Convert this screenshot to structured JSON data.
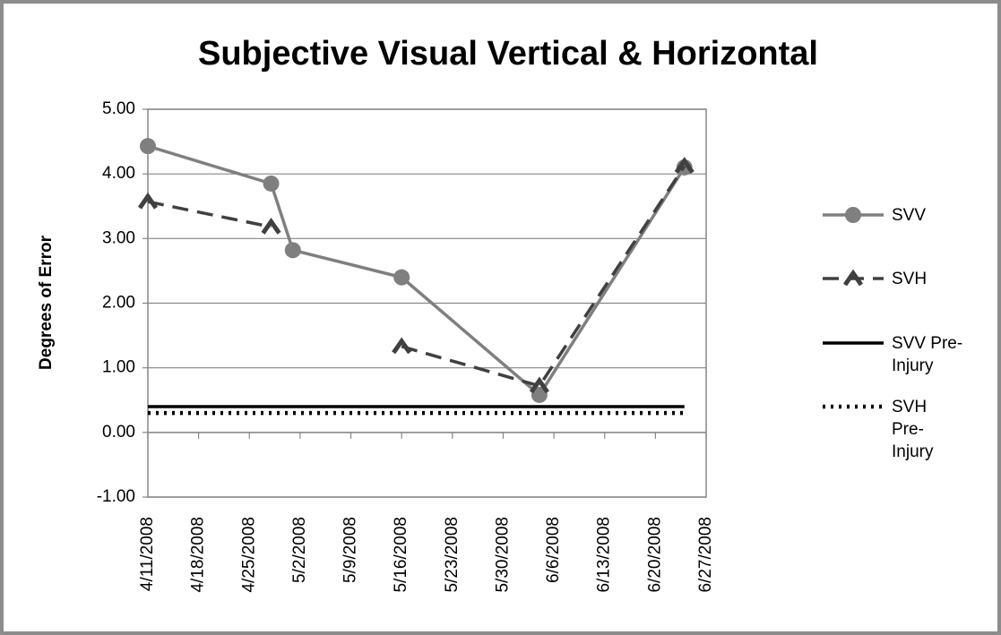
{
  "chart_data": {
    "type": "line",
    "title": "Subjective Visual Vertical & Horizontal",
    "y_label": "Degrees of Error",
    "ylim": [
      -1,
      5
    ],
    "yticks": [
      {
        "value": -1,
        "label": "-1.00"
      },
      {
        "value": 0,
        "label": "0.00"
      },
      {
        "value": 1,
        "label": "1.00"
      },
      {
        "value": 2,
        "label": "2.00"
      },
      {
        "value": 3,
        "label": "3.00"
      },
      {
        "value": 4,
        "label": "4.00"
      },
      {
        "value": 5,
        "label": "5.00"
      }
    ],
    "xlim": [
      "4/11/2008",
      "6/27/2008"
    ],
    "xticks": [
      "4/11/2008",
      "4/18/2008",
      "4/25/2008",
      "5/2/2008",
      "5/9/2008",
      "5/16/2008",
      "5/23/2008",
      "5/30/2008",
      "6/6/2008",
      "6/13/2008",
      "6/20/2008",
      "6/27/2008"
    ],
    "grid": true,
    "legend": "right",
    "series": [
      {
        "name": "SVV",
        "color": "#7f7f7f",
        "style": "solid",
        "marker": "circle",
        "x": [
          "4/11/2008",
          "4/28/2008",
          "5/1/2008",
          "5/16/2008",
          "6/4/2008",
          "6/24/2008"
        ],
        "values": [
          4.43,
          3.85,
          2.82,
          2.4,
          0.58,
          4.1
        ]
      },
      {
        "name": "SVH",
        "color": "#404040",
        "style": "dashed",
        "marker": "chevron",
        "x": [
          "4/11/2008",
          "4/28/2008",
          "5/1/2008",
          "5/16/2008",
          "6/4/2008",
          "6/24/2008"
        ],
        "values": [
          3.57,
          3.18,
          null,
          1.33,
          0.72,
          4.12
        ]
      },
      {
        "name": "SVV Pre-Injury",
        "color": "#000000",
        "style": "solid",
        "marker": "none",
        "x": [
          "4/11/2008",
          "6/24/2008"
        ],
        "values": [
          0.4,
          0.4
        ]
      },
      {
        "name": "SVH Pre-Injury",
        "color": "#000000",
        "style": "dotted",
        "marker": "none",
        "x": [
          "4/11/2008",
          "6/24/2008"
        ],
        "values": [
          0.3,
          0.3
        ]
      }
    ]
  }
}
